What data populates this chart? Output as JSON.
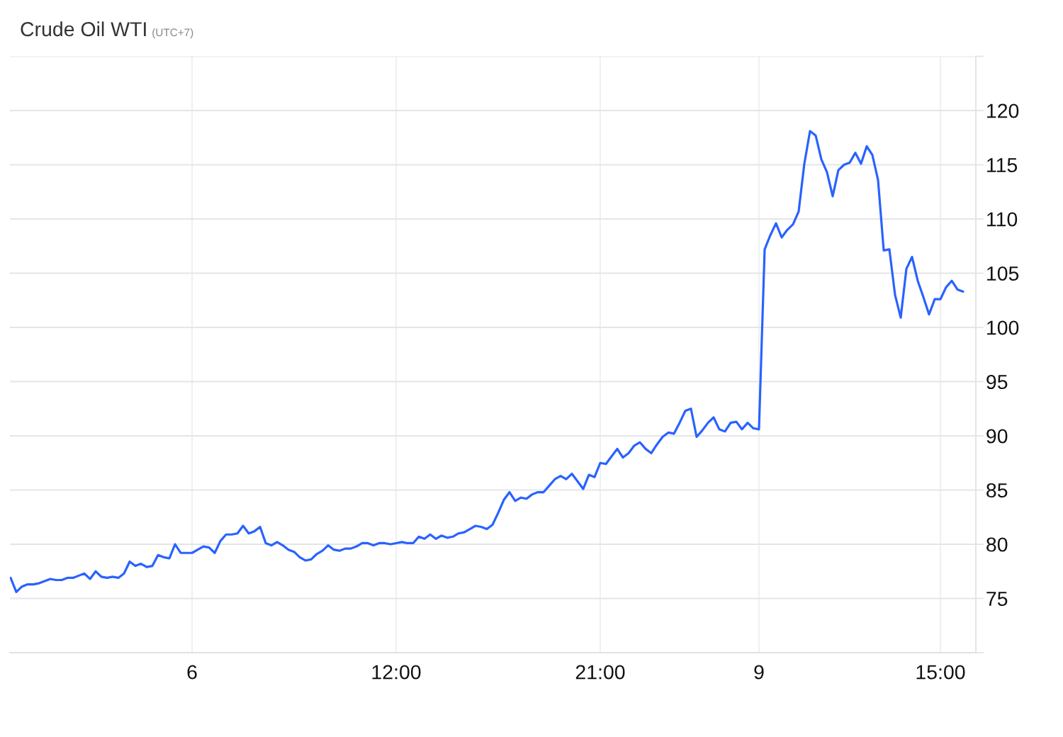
{
  "chart_data": {
    "type": "line",
    "title": "Crude Oil WTI",
    "subtitle": "(UTC+7)",
    "categories": [
      null,
      null,
      null,
      null,
      null,
      null,
      null,
      null,
      null,
      null,
      null,
      null,
      null,
      null,
      null,
      null,
      null,
      null,
      null,
      null,
      null,
      null,
      null,
      null,
      null,
      null,
      null,
      null,
      null,
      null,
      null,
      null,
      "6",
      null,
      null,
      null,
      null,
      null,
      null,
      null,
      null,
      null,
      null,
      null,
      null,
      null,
      null,
      null,
      null,
      null,
      null,
      null,
      null,
      null,
      null,
      null,
      null,
      null,
      null,
      null,
      null,
      null,
      null,
      null,
      null,
      null,
      null,
      null,
      "12:00",
      null,
      null,
      null,
      null,
      null,
      null,
      null,
      null,
      null,
      null,
      null,
      null,
      null,
      null,
      null,
      null,
      null,
      null,
      null,
      null,
      null,
      null,
      null,
      null,
      null,
      null,
      null,
      null,
      null,
      null,
      null,
      null,
      null,
      null,
      null,
      "21:00",
      null,
      null,
      null,
      null,
      null,
      null,
      null,
      null,
      null,
      null,
      null,
      null,
      null,
      null,
      null,
      null,
      null,
      null,
      null,
      null,
      null,
      null,
      null,
      null,
      null,
      null,
      null,
      "9",
      null,
      null,
      null,
      null,
      null,
      null,
      null,
      null,
      null,
      null,
      null,
      null,
      null,
      null,
      null,
      null,
      null,
      null,
      null,
      null,
      null,
      null,
      null,
      null,
      null,
      null,
      null,
      null,
      null,
      null,
      null,
      "15:00",
      null,
      null,
      null,
      null
    ],
    "series": [
      {
        "color": "#2962ff",
        "values": [
          76.9,
          75.6,
          76.1,
          76.3,
          76.3,
          76.4,
          76.6,
          76.8,
          76.7,
          76.7,
          76.9,
          76.9,
          77.1,
          77.3,
          76.8,
          77.5,
          77.0,
          76.9,
          77.0,
          76.9,
          77.3,
          78.4,
          78.0,
          78.2,
          77.9,
          78.0,
          79.0,
          78.8,
          78.7,
          80.0,
          79.2,
          79.2,
          79.2,
          79.5,
          79.8,
          79.7,
          79.2,
          80.3,
          80.9,
          80.9,
          81.0,
          81.7,
          81.0,
          81.2,
          81.6,
          80.1,
          79.9,
          80.2,
          79.9,
          79.5,
          79.3,
          78.8,
          78.5,
          78.6,
          79.1,
          79.4,
          79.9,
          79.5,
          79.4,
          79.6,
          79.6,
          79.8,
          80.1,
          80.1,
          79.9,
          80.1,
          80.1,
          80.0,
          80.1,
          80.2,
          80.1,
          80.1,
          80.7,
          80.5,
          80.9,
          80.5,
          80.8,
          80.6,
          80.7,
          81.0,
          81.1,
          81.4,
          81.7,
          81.6,
          81.4,
          81.8,
          82.9,
          84.1,
          84.8,
          84.0,
          84.3,
          84.2,
          84.6,
          84.8,
          84.8,
          85.4,
          86.0,
          86.3,
          86.0,
          86.5,
          85.8,
          85.1,
          86.4,
          86.2,
          87.5,
          87.4,
          88.1,
          88.8,
          88.0,
          88.4,
          89.1,
          89.4,
          88.8,
          88.4,
          89.2,
          89.9,
          90.3,
          90.2,
          91.2,
          92.3,
          92.5,
          89.9,
          90.5,
          91.2,
          91.7,
          90.6,
          90.4,
          91.2,
          91.3,
          90.6,
          91.2,
          90.7,
          90.6,
          107.2,
          108.5,
          109.6,
          108.3,
          109.0,
          109.5,
          110.7,
          115.1,
          118.1,
          117.7,
          115.5,
          114.3,
          112.1,
          114.5,
          115.0,
          115.2,
          116.1,
          115.1,
          116.7,
          115.9,
          113.6,
          107.1,
          107.2,
          103.0,
          100.9,
          105.4,
          106.5,
          104.3,
          102.8,
          101.2,
          102.6,
          102.6,
          103.7,
          104.3,
          103.5,
          103.3
        ]
      }
    ],
    "ylim": [
      70,
      125
    ],
    "yticks": [
      {
        "value": 70,
        "label": null
      },
      75,
      80,
      85,
      90,
      95,
      100,
      105,
      110,
      115,
      120,
      {
        "value": 125,
        "label": null
      }
    ],
    "grid": true,
    "line_style": "solid"
  }
}
